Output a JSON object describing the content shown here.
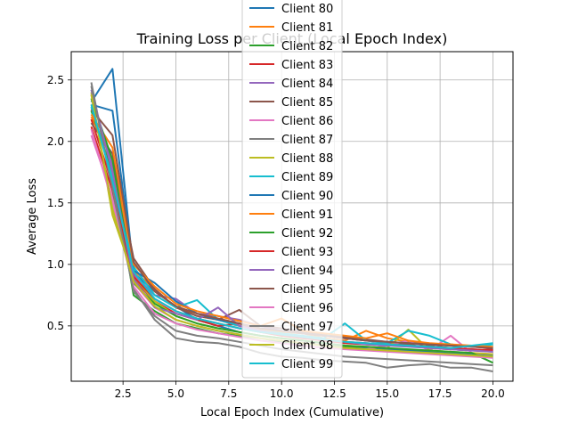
{
  "chart_data": {
    "type": "line",
    "title": "Training Loss per Client (Local Epoch Index)",
    "xlabel": "Local Epoch Index (Cumulative)",
    "ylabel": "Average Loss",
    "xlim": [
      0.05,
      20.95
    ],
    "ylim": [
      0.05,
      2.73
    ],
    "xticks": [
      2.5,
      5.0,
      7.5,
      10.0,
      12.5,
      15.0,
      17.5,
      20.0
    ],
    "xtick_labels": [
      "2.5",
      "5.0",
      "7.5",
      "10.0",
      "12.5",
      "15.0",
      "17.5",
      "20.0"
    ],
    "yticks": [
      0.5,
      1.0,
      1.5,
      2.0,
      2.5
    ],
    "ytick_labels": [
      "0.5",
      "1.0",
      "1.5",
      "2.0",
      "2.5"
    ],
    "grid": true,
    "legend_position": "top-center (overlapping plot area)",
    "x": [
      1,
      2,
      3,
      4,
      5,
      6,
      7,
      8,
      9,
      10,
      11,
      12,
      13,
      14,
      15,
      16,
      17,
      18,
      19,
      20
    ],
    "series": [
      {
        "name": "Client 80",
        "color": "#1f77b4",
        "values": [
          2.32,
          2.59,
          0.93,
          0.78,
          0.66,
          0.55,
          0.5,
          0.45,
          0.42,
          0.4,
          0.38,
          0.36,
          0.34,
          0.32,
          0.31,
          0.3,
          0.29,
          0.28,
          0.27,
          0.26
        ]
      },
      {
        "name": "Client 81",
        "color": "#ff7f0e",
        "values": [
          2.2,
          1.85,
          0.95,
          0.8,
          0.65,
          0.6,
          0.55,
          0.5,
          0.47,
          0.45,
          0.44,
          0.4,
          0.38,
          0.46,
          0.4,
          0.37,
          0.35,
          0.34,
          0.33,
          0.32
        ]
      },
      {
        "name": "Client 82",
        "color": "#2ca02c",
        "values": [
          2.25,
          1.75,
          0.75,
          0.62,
          0.52,
          0.48,
          0.44,
          0.42,
          0.4,
          0.37,
          0.36,
          0.34,
          0.33,
          0.31,
          0.3,
          0.29,
          0.28,
          0.27,
          0.26,
          0.25
        ]
      },
      {
        "name": "Client 83",
        "color": "#d62728",
        "values": [
          2.18,
          1.65,
          0.88,
          0.7,
          0.6,
          0.55,
          0.5,
          0.52,
          0.45,
          0.42,
          0.4,
          0.38,
          0.36,
          0.35,
          0.34,
          0.35,
          0.32,
          0.31,
          0.3,
          0.31
        ]
      },
      {
        "name": "Client 84",
        "color": "#9467bd",
        "values": [
          2.38,
          1.8,
          0.92,
          0.75,
          0.72,
          0.6,
          0.58,
          0.55,
          0.5,
          0.46,
          0.44,
          0.42,
          0.4,
          0.38,
          0.36,
          0.34,
          0.33,
          0.31,
          0.3,
          0.29
        ]
      },
      {
        "name": "Client 85",
        "color": "#8c564b",
        "values": [
          2.15,
          1.9,
          1.05,
          0.8,
          0.65,
          0.58,
          0.55,
          0.63,
          0.5,
          0.48,
          0.45,
          0.43,
          0.41,
          0.39,
          0.37,
          0.35,
          0.34,
          0.32,
          0.31,
          0.3
        ]
      },
      {
        "name": "Client 86",
        "color": "#e377c2",
        "values": [
          2.05,
          1.55,
          0.85,
          0.65,
          0.55,
          0.5,
          0.46,
          0.43,
          0.4,
          0.38,
          0.36,
          0.34,
          0.32,
          0.31,
          0.34,
          0.38,
          0.3,
          0.42,
          0.28,
          0.27
        ]
      },
      {
        "name": "Client 87",
        "color": "#7f7f7f",
        "values": [
          2.48,
          1.6,
          0.8,
          0.55,
          0.4,
          0.37,
          0.36,
          0.33,
          0.28,
          0.25,
          0.24,
          0.22,
          0.21,
          0.2,
          0.16,
          0.18,
          0.19,
          0.16,
          0.16,
          0.13
        ]
      },
      {
        "name": "Client 88",
        "color": "#bcbd22",
        "values": [
          2.4,
          1.4,
          0.9,
          0.7,
          0.58,
          0.52,
          0.48,
          0.45,
          0.42,
          0.4,
          0.38,
          0.36,
          0.34,
          0.33,
          0.32,
          0.47,
          0.3,
          0.29,
          0.28,
          0.27
        ]
      },
      {
        "name": "Client 89",
        "color": "#17becf",
        "values": [
          2.28,
          1.7,
          0.98,
          0.75,
          0.65,
          0.71,
          0.55,
          0.5,
          0.46,
          0.44,
          0.42,
          0.4,
          0.52,
          0.38,
          0.36,
          0.46,
          0.42,
          0.35,
          0.33,
          0.35
        ]
      },
      {
        "name": "Client 90",
        "color": "#1f77b4",
        "values": [
          2.3,
          2.25,
          0.95,
          0.85,
          0.7,
          0.6,
          0.55,
          0.52,
          0.48,
          0.46,
          0.44,
          0.42,
          0.4,
          0.38,
          0.37,
          0.36,
          0.35,
          0.34,
          0.33,
          0.32
        ]
      },
      {
        "name": "Client 91",
        "color": "#ff7f0e",
        "values": [
          2.22,
          1.95,
          1.0,
          0.82,
          0.68,
          0.62,
          0.58,
          0.54,
          0.5,
          0.56,
          0.46,
          0.44,
          0.42,
          0.4,
          0.44,
          0.38,
          0.36,
          0.35,
          0.34,
          0.33
        ]
      },
      {
        "name": "Client 92",
        "color": "#2ca02c",
        "values": [
          2.35,
          1.85,
          0.85,
          0.68,
          0.58,
          0.52,
          0.48,
          0.45,
          0.42,
          0.4,
          0.38,
          0.36,
          0.34,
          0.33,
          0.32,
          0.31,
          0.3,
          0.29,
          0.28,
          0.2
        ]
      },
      {
        "name": "Client 93",
        "color": "#d62728",
        "values": [
          2.12,
          1.6,
          0.9,
          0.72,
          0.62,
          0.56,
          0.52,
          0.48,
          0.45,
          0.43,
          0.41,
          0.39,
          0.37,
          0.36,
          0.35,
          0.34,
          0.33,
          0.32,
          0.31,
          0.3
        ]
      },
      {
        "name": "Client 94",
        "color": "#9467bd",
        "values": [
          2.42,
          1.75,
          0.88,
          0.65,
          0.6,
          0.55,
          0.65,
          0.5,
          0.46,
          0.43,
          0.41,
          0.39,
          0.37,
          0.35,
          0.34,
          0.33,
          0.32,
          0.31,
          0.3,
          0.29
        ]
      },
      {
        "name": "Client 95",
        "color": "#8c564b",
        "values": [
          2.26,
          2.05,
          1.02,
          0.78,
          0.66,
          0.6,
          0.56,
          0.52,
          0.48,
          0.46,
          0.44,
          0.42,
          0.4,
          0.38,
          0.37,
          0.36,
          0.35,
          0.34,
          0.33,
          0.32
        ]
      },
      {
        "name": "Client 96",
        "color": "#e377c2",
        "values": [
          2.1,
          1.5,
          0.82,
          0.6,
          0.52,
          0.47,
          0.44,
          0.41,
          0.38,
          0.36,
          0.34,
          0.32,
          0.31,
          0.3,
          0.29,
          0.28,
          0.27,
          0.26,
          0.25,
          0.24
        ]
      },
      {
        "name": "Client 97",
        "color": "#7f7f7f",
        "values": [
          2.45,
          1.62,
          0.78,
          0.58,
          0.46,
          0.42,
          0.4,
          0.37,
          0.34,
          0.31,
          0.29,
          0.27,
          0.25,
          0.24,
          0.23,
          0.22,
          0.21,
          0.2,
          0.19,
          0.18
        ]
      },
      {
        "name": "Client 98",
        "color": "#bcbd22",
        "values": [
          2.38,
          1.45,
          0.86,
          0.66,
          0.55,
          0.5,
          0.46,
          0.43,
          0.4,
          0.38,
          0.36,
          0.34,
          0.32,
          0.31,
          0.3,
          0.29,
          0.28,
          0.27,
          0.26,
          0.25
        ]
      },
      {
        "name": "Client 99",
        "color": "#17becf",
        "values": [
          2.3,
          1.68,
          0.94,
          0.72,
          0.62,
          0.56,
          0.52,
          0.48,
          0.45,
          0.43,
          0.41,
          0.39,
          0.37,
          0.36,
          0.35,
          0.34,
          0.33,
          0.32,
          0.34,
          0.36
        ]
      }
    ]
  }
}
